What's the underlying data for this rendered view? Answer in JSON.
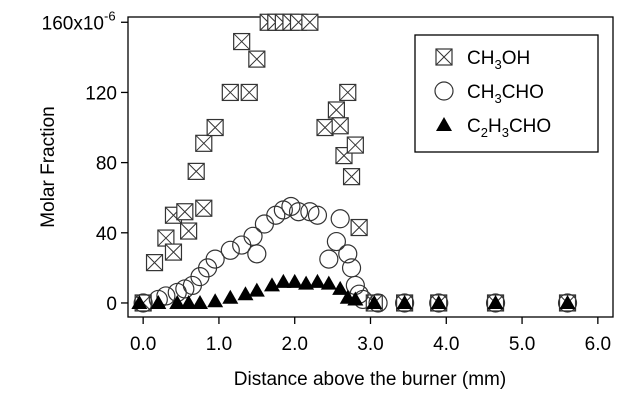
{
  "chart_data": {
    "type": "scatter",
    "title": "",
    "xlabel": "Distance above the burner (mm)",
    "ylabel": "Molar Fraction",
    "xlim": [
      -0.2,
      6.2
    ],
    "ylim": [
      -8,
      163
    ],
    "x_ticks": [
      0.0,
      1.0,
      2.0,
      3.0,
      4.0,
      5.0,
      6.0
    ],
    "x_tick_labels": [
      "0.0",
      "1.0",
      "2.0",
      "3.0",
      "4.0",
      "5.0",
      "6.0"
    ],
    "y_ticks": [
      0,
      40,
      80,
      120,
      160
    ],
    "y_tick_labels": [
      "0",
      "40",
      "80",
      "120",
      "160x10"
    ],
    "y_tick_top_exponent": "-6",
    "grid": false,
    "legend_position": "top-right",
    "series": [
      {
        "name": "CH3OH",
        "legend_label": {
          "prefix": "CH",
          "sub": "3",
          "suffix": "OH"
        },
        "marker": "boxed-x",
        "points": [
          [
            0.0,
            0
          ],
          [
            0.15,
            23
          ],
          [
            0.3,
            37
          ],
          [
            0.4,
            50
          ],
          [
            0.4,
            29
          ],
          [
            0.55,
            52
          ],
          [
            0.6,
            41
          ],
          [
            0.7,
            75
          ],
          [
            0.8,
            54
          ],
          [
            0.8,
            91
          ],
          [
            0.95,
            100
          ],
          [
            1.15,
            120
          ],
          [
            1.3,
            149
          ],
          [
            1.4,
            120
          ],
          [
            1.5,
            139
          ],
          [
            1.65,
            160
          ],
          [
            1.75,
            160
          ],
          [
            1.85,
            160
          ],
          [
            1.95,
            160
          ],
          [
            2.05,
            160
          ],
          [
            2.2,
            160
          ],
          [
            2.4,
            100
          ],
          [
            2.55,
            110
          ],
          [
            2.6,
            101
          ],
          [
            2.65,
            84
          ],
          [
            2.7,
            120
          ],
          [
            2.75,
            72
          ],
          [
            2.8,
            90
          ],
          [
            2.85,
            43
          ],
          [
            3.05,
            0
          ],
          [
            3.45,
            0
          ],
          [
            3.9,
            0
          ],
          [
            4.65,
            0
          ],
          [
            5.6,
            0
          ]
        ]
      },
      {
        "name": "CH3CHO",
        "legend_label": {
          "prefix": "CH",
          "sub": "3",
          "suffix": "CHO"
        },
        "marker": "open-circle",
        "points": [
          [
            0.0,
            0
          ],
          [
            0.2,
            2
          ],
          [
            0.3,
            4
          ],
          [
            0.45,
            6
          ],
          [
            0.55,
            8
          ],
          [
            0.65,
            10
          ],
          [
            0.75,
            15
          ],
          [
            0.85,
            20
          ],
          [
            0.95,
            25
          ],
          [
            1.15,
            30
          ],
          [
            1.3,
            33
          ],
          [
            1.45,
            38
          ],
          [
            1.5,
            28
          ],
          [
            1.6,
            45
          ],
          [
            1.75,
            50
          ],
          [
            1.85,
            53
          ],
          [
            1.95,
            55
          ],
          [
            2.05,
            52
          ],
          [
            2.2,
            52
          ],
          [
            2.3,
            50
          ],
          [
            2.45,
            25
          ],
          [
            2.55,
            35
          ],
          [
            2.6,
            48
          ],
          [
            2.7,
            28
          ],
          [
            2.75,
            20
          ],
          [
            2.8,
            10
          ],
          [
            2.85,
            5
          ],
          [
            2.9,
            2
          ],
          [
            3.1,
            0
          ],
          [
            3.45,
            0
          ],
          [
            3.9,
            0
          ],
          [
            4.65,
            0
          ],
          [
            5.6,
            0
          ]
        ]
      },
      {
        "name": "C2H3CHO",
        "legend_label": {
          "prefix": "C",
          "sub": "2",
          "mid": "H",
          "sub2": "3",
          "suffix": "CHO"
        },
        "marker": "filled-triangle",
        "points": [
          [
            -0.05,
            0
          ],
          [
            0.2,
            0
          ],
          [
            0.45,
            0
          ],
          [
            0.6,
            0
          ],
          [
            0.75,
            0
          ],
          [
            0.95,
            1
          ],
          [
            1.15,
            3
          ],
          [
            1.35,
            5
          ],
          [
            1.5,
            7
          ],
          [
            1.7,
            10
          ],
          [
            1.85,
            12
          ],
          [
            2.0,
            12
          ],
          [
            2.15,
            11
          ],
          [
            2.3,
            12
          ],
          [
            2.45,
            11
          ],
          [
            2.6,
            8
          ],
          [
            2.7,
            3
          ],
          [
            2.8,
            2
          ],
          [
            3.05,
            0
          ],
          [
            3.45,
            0
          ],
          [
            3.9,
            0
          ],
          [
            4.65,
            0
          ],
          [
            5.6,
            0
          ]
        ]
      }
    ]
  }
}
